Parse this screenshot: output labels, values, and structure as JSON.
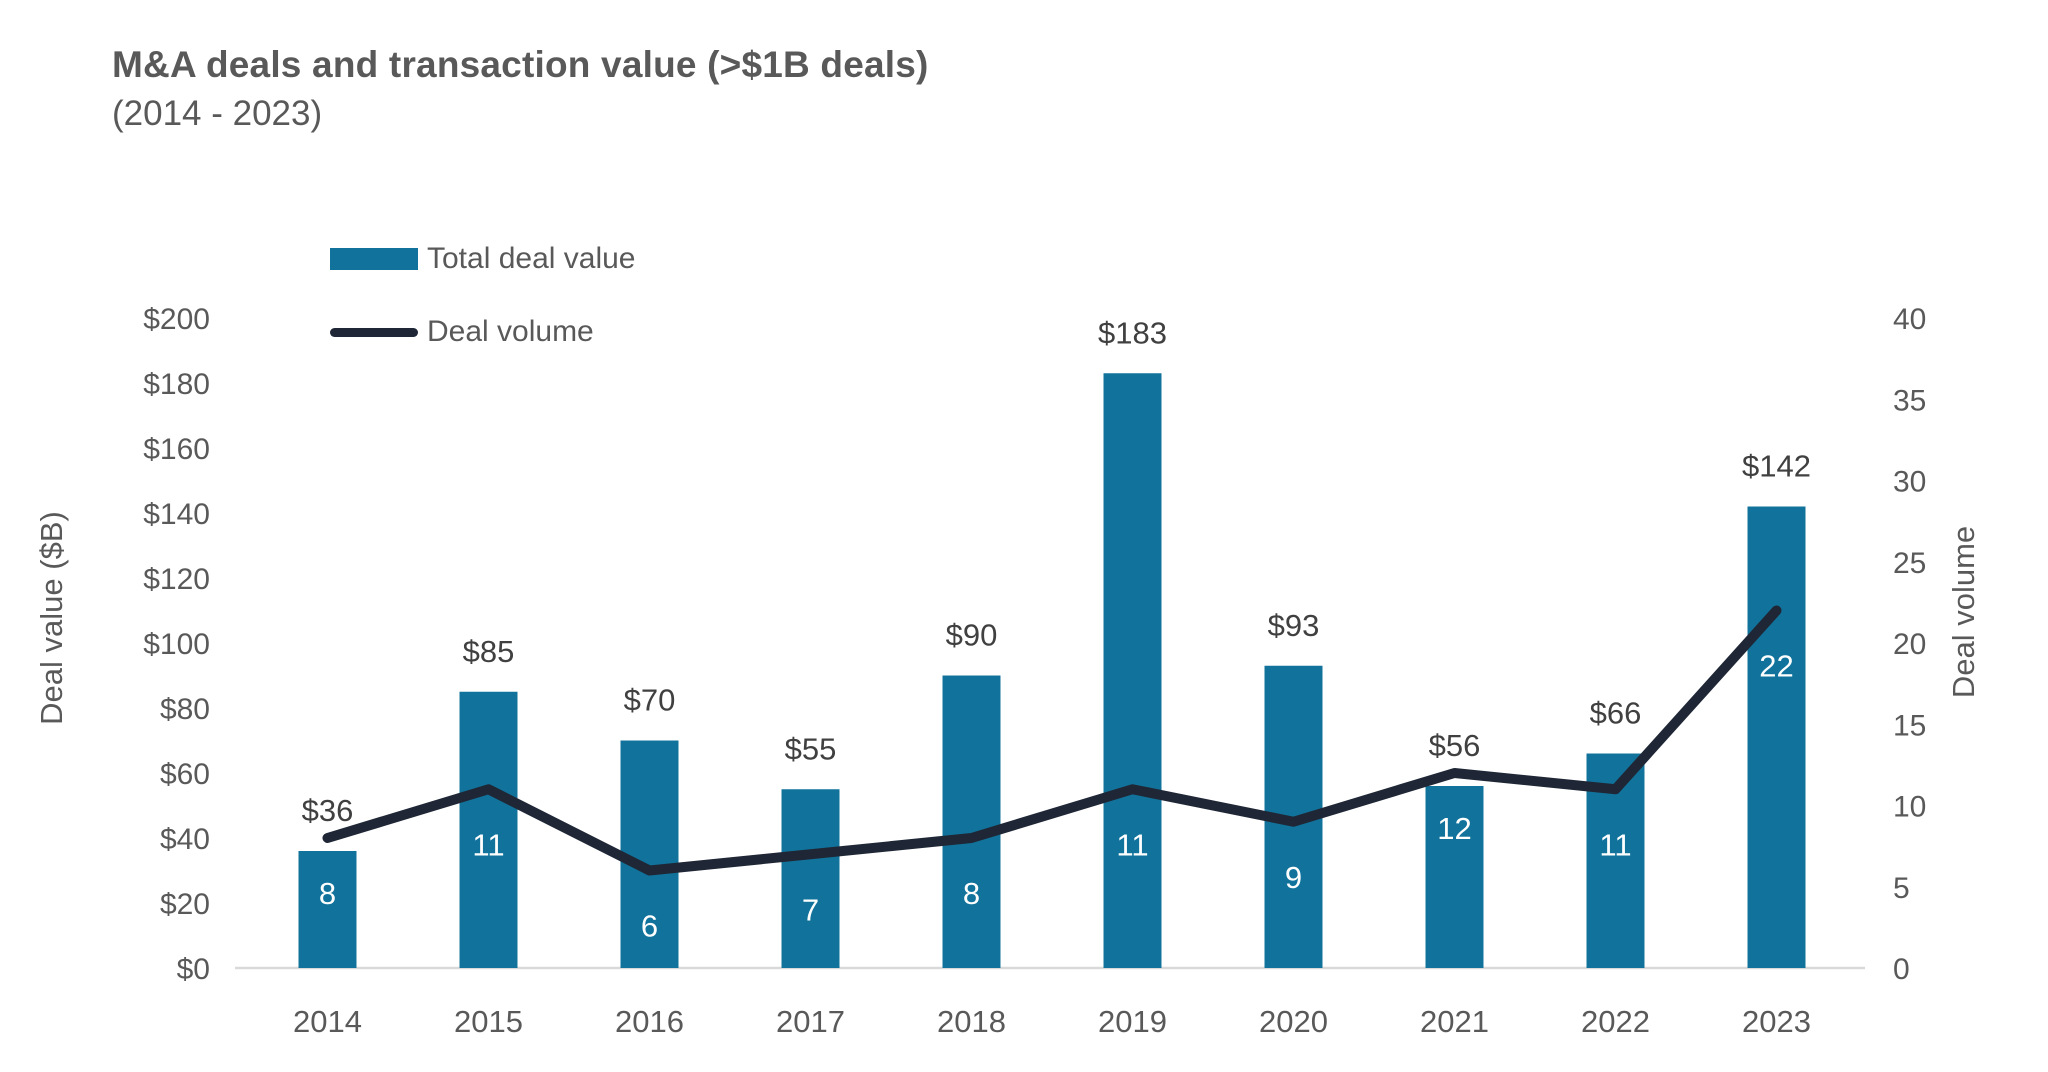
{
  "chart_data": {
    "type": "bar",
    "combo": "bar+line",
    "title": "M&A deals and transaction value (>$1B deals)",
    "subtitle": "(2014 - 2023)",
    "categories": [
      "2014",
      "2015",
      "2016",
      "2017",
      "2018",
      "2019",
      "2020",
      "2021",
      "2022",
      "2023"
    ],
    "series": [
      {
        "name": "Total deal value",
        "type": "bar",
        "axis": "left",
        "values": [
          36,
          85,
          70,
          55,
          90,
          183,
          93,
          56,
          66,
          142
        ],
        "data_labels": [
          "$36",
          "$85",
          "$70",
          "$55",
          "$90",
          "$183",
          "$93",
          "$56",
          "$66",
          "$142"
        ],
        "color": "#11739B"
      },
      {
        "name": "Deal volume",
        "type": "line",
        "axis": "right",
        "values": [
          8,
          11,
          6,
          7,
          8,
          11,
          9,
          12,
          11,
          22
        ],
        "data_labels": [
          "8",
          "11",
          "6",
          "7",
          "8",
          "11",
          "9",
          "12",
          "11",
          "22"
        ],
        "color": "#1F2736"
      }
    ],
    "left_axis": {
      "title": "Deal value ($B)",
      "min": 0,
      "max": 200,
      "step": 20,
      "ticks": [
        "$0",
        "$20",
        "$40",
        "$60",
        "$80",
        "$100",
        "$120",
        "$140",
        "$160",
        "$180",
        "$200"
      ]
    },
    "right_axis": {
      "title": "Deal volume",
      "min": 0,
      "max": 40,
      "step": 5,
      "ticks": [
        "0",
        "5",
        "10",
        "15",
        "20",
        "25",
        "30",
        "35",
        "40"
      ]
    },
    "grid": false,
    "legend_position": "top-left"
  },
  "colors": {
    "bar": "#11739B",
    "line": "#1F2736",
    "title_text": "#595959",
    "tick_text": "#595959",
    "bar_label_text": "#404040",
    "volume_label_text": "#FFFFFF",
    "axis_line": "#D9D9D9",
    "background": "#FFFFFF"
  }
}
